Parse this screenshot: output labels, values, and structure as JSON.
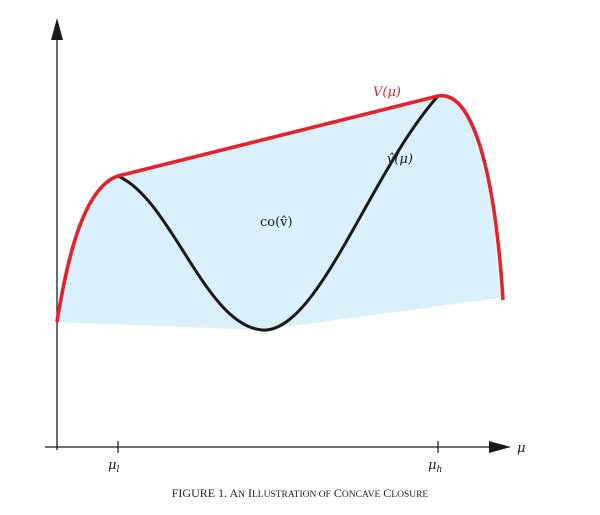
{
  "caption": {
    "prefix": "FIGURE 1. ",
    "first_letters": [
      "A",
      "I",
      "C",
      "C"
    ],
    "rest": [
      "N",
      "LLUSTRATION OF",
      "ONCAVE",
      "LOSURE"
    ]
  },
  "labels": {
    "value_function": "V(μ)",
    "v_hat": "v̂(μ)",
    "concave_hull": "co(v̂)",
    "x_axis": "μ",
    "mu_low": "μ",
    "mu_low_sub": "l",
    "mu_high": "μ",
    "mu_high_sub": "h"
  },
  "colors": {
    "value_function": "#e3232b",
    "v_hat": "#1a1a1a",
    "shade": "#daf0fa",
    "axes": "#1a1a1a"
  }
}
